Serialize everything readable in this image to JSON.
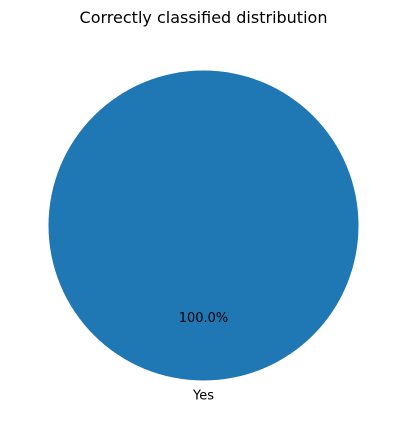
{
  "chart_data": {
    "type": "pie",
    "title": "Correctly classified distribution",
    "categories": [
      "Yes"
    ],
    "values": [
      100.0
    ],
    "labels": [
      "Yes"
    ],
    "percent_labels": [
      "100.0%"
    ],
    "colors": [
      "#1f77b4"
    ]
  }
}
